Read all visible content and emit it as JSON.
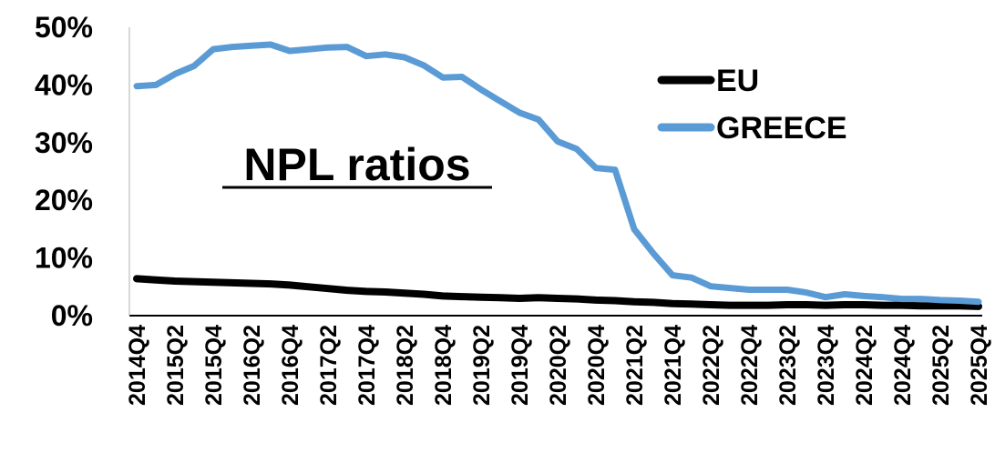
{
  "chart_data": {
    "type": "line",
    "title": "NPL ratios",
    "xlabel": "",
    "ylabel": "",
    "ylim": [
      0,
      50
    ],
    "y_ticks": [
      "0%",
      "10%",
      "20%",
      "30%",
      "40%",
      "50%"
    ],
    "y_tick_values": [
      0,
      10,
      20,
      30,
      40,
      50
    ],
    "x_ticks": [
      "2014Q4",
      "2015Q2",
      "2015Q4",
      "2016Q2",
      "2016Q4",
      "2017Q2",
      "2017Q4",
      "2018Q2",
      "2018Q4",
      "2019Q2",
      "2019Q4",
      "2020Q2",
      "2020Q4",
      "2021Q2",
      "2021Q4",
      "2022Q2",
      "2022Q4",
      "2023Q2",
      "2023Q4",
      "2024Q2",
      "2024Q4",
      "2025Q2",
      "2025Q4"
    ],
    "x": [
      "2014Q4",
      "2015Q1",
      "2015Q2",
      "2015Q3",
      "2015Q4",
      "2016Q1",
      "2016Q2",
      "2016Q3",
      "2016Q4",
      "2017Q1",
      "2017Q2",
      "2017Q3",
      "2017Q4",
      "2018Q1",
      "2018Q2",
      "2018Q3",
      "2018Q4",
      "2019Q1",
      "2019Q2",
      "2019Q3",
      "2019Q4",
      "2020Q1",
      "2020Q2",
      "2020Q3",
      "2020Q4",
      "2021Q1",
      "2021Q2",
      "2021Q3",
      "2021Q4",
      "2022Q1",
      "2022Q2",
      "2022Q3",
      "2022Q4",
      "2023Q1",
      "2023Q2",
      "2023Q3",
      "2023Q4",
      "2024Q1",
      "2024Q2",
      "2024Q3",
      "2024Q4",
      "2025Q1",
      "2025Q2",
      "2025Q3",
      "2025Q4"
    ],
    "grid": false,
    "legend_position": "top-right",
    "series": [
      {
        "name": "EU",
        "color": "#000000",
        "values": [
          6.4,
          6.2,
          6.0,
          5.9,
          5.8,
          5.7,
          5.6,
          5.5,
          5.3,
          5.0,
          4.7,
          4.4,
          4.2,
          4.1,
          3.9,
          3.7,
          3.4,
          3.3,
          3.2,
          3.1,
          3.0,
          3.1,
          3.0,
          2.9,
          2.7,
          2.6,
          2.4,
          2.3,
          2.1,
          2.0,
          1.9,
          1.8,
          1.8,
          1.8,
          1.9,
          1.9,
          1.8,
          1.9,
          1.9,
          1.8,
          1.8,
          1.7,
          1.7,
          1.7,
          1.6
        ]
      },
      {
        "name": "GREECE",
        "color": "#5B9BD5",
        "values": [
          39.8,
          40.0,
          41.9,
          43.3,
          46.2,
          46.6,
          46.8,
          47.0,
          45.9,
          46.2,
          46.5,
          46.6,
          45.0,
          45.3,
          44.8,
          43.4,
          41.3,
          41.4,
          39.2,
          37.2,
          35.2,
          34.0,
          30.2,
          28.9,
          25.6,
          25.3,
          15.0,
          10.8,
          7.0,
          6.6,
          5.1,
          4.8,
          4.5,
          4.5,
          4.5,
          4.0,
          3.2,
          3.7,
          3.4,
          3.2,
          2.9,
          2.9,
          2.7,
          2.6,
          2.4
        ]
      }
    ]
  }
}
